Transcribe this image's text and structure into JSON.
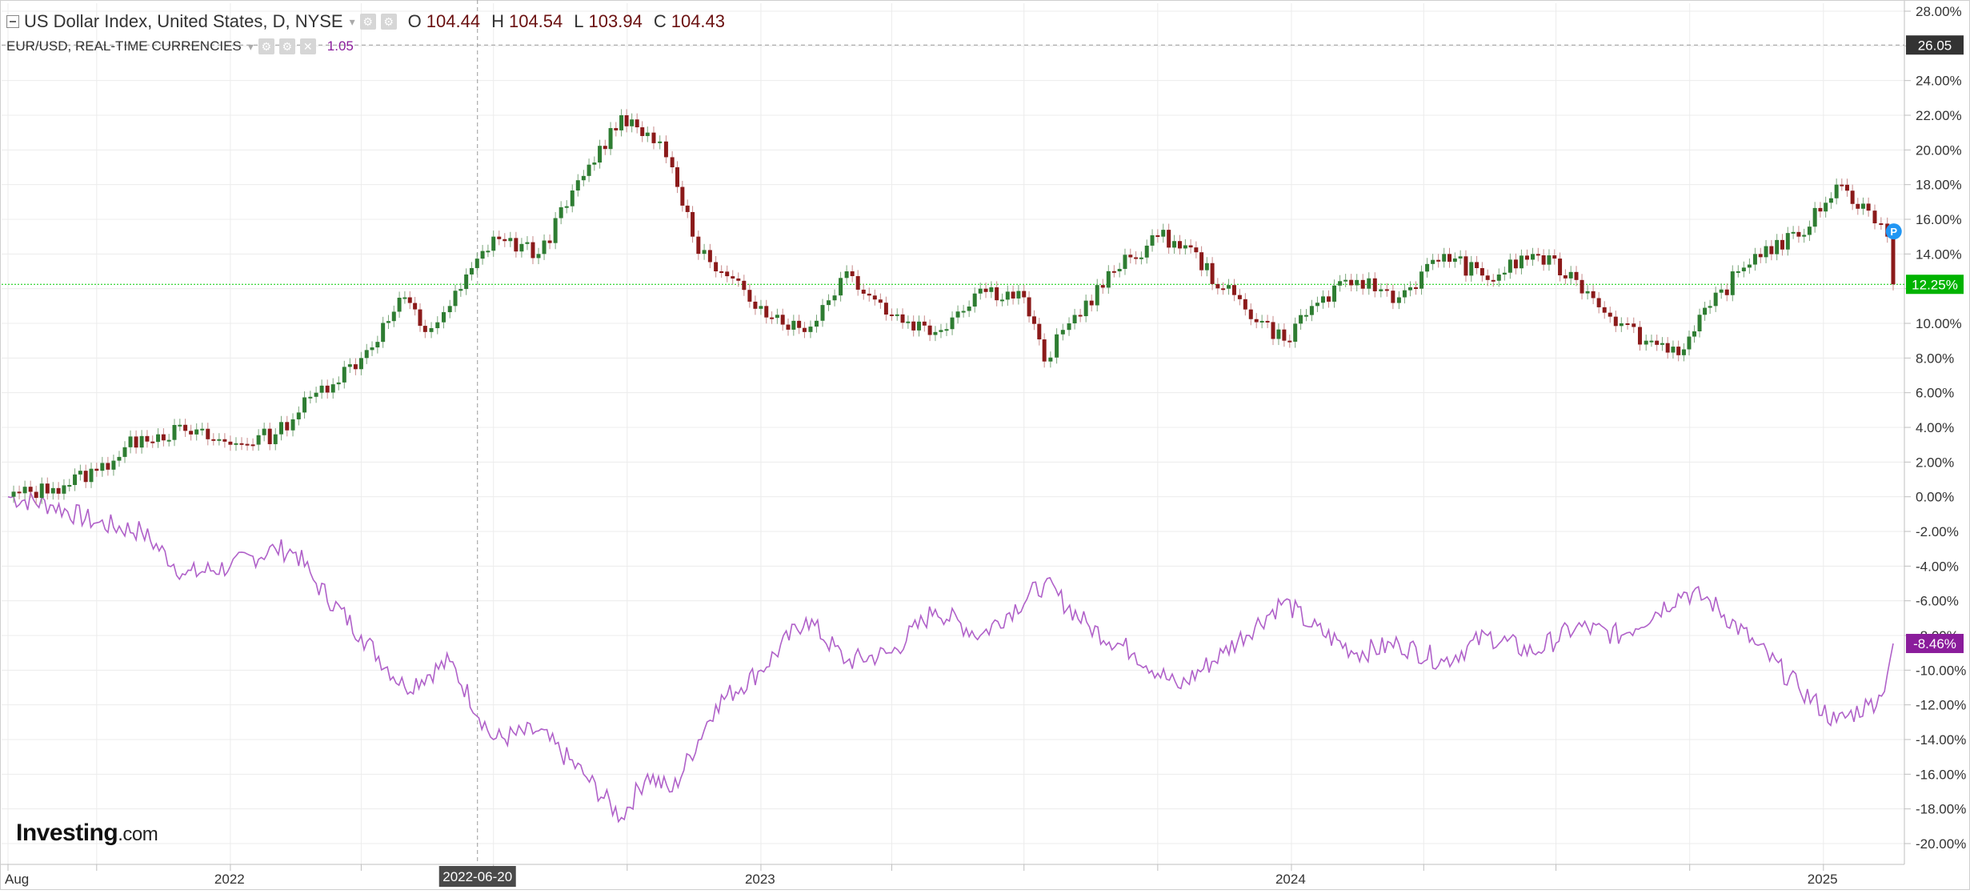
{
  "header": {
    "main_title": "US Dollar Index, United States, D, NYSE",
    "ohlc": [
      {
        "label": "O",
        "value": "104.44"
      },
      {
        "label": "H",
        "value": "104.54"
      },
      {
        "label": "L",
        "value": "103.94"
      },
      {
        "label": "C",
        "value": "104.43"
      }
    ],
    "secondary_title": "EUR/USD, REAL-TIME CURRENCIES",
    "secondary_value": "1.05"
  },
  "logo": {
    "main": "Investing",
    "suffix": ".com"
  },
  "colors": {
    "up": "#2e7d32",
    "down": "#8b1a1a",
    "eurusd_line": "#b061c9",
    "current_line": "#00cc00",
    "label_eurusd": "#8a1c9b",
    "label_current": "#00b300",
    "label_dark": "#333333",
    "marker_p": "#2196f3"
  },
  "chart_data": {
    "type": "line",
    "title": "US Dollar Index, United States, D, NYSE",
    "ylabel": "",
    "xlabel": "",
    "ylim": [
      -21,
      29
    ],
    "y_ticks": [
      "28.00%",
      "26.00%",
      "24.00%",
      "22.00%",
      "20.00%",
      "18.00%",
      "16.00%",
      "14.00%",
      "12.00%",
      "10.00%",
      "8.00%",
      "6.00%",
      "4.00%",
      "2.00%",
      "0.00%",
      "-2.00%",
      "-4.00%",
      "-6.00%",
      "-8.00%",
      "-10.00%",
      "-12.00%",
      "-14.00%",
      "-16.00%",
      "-18.00%",
      "-20.00%"
    ],
    "x_axis": {
      "start": "2021-08-01",
      "end": "2025-02-18",
      "labels": [
        {
          "date": "2021-08-01",
          "text": "Aug"
        },
        {
          "date": "2022-01-01",
          "text": "2022"
        },
        {
          "date": "2023-01-01",
          "text": "2023"
        },
        {
          "date": "2024-01-01",
          "text": "2024"
        },
        {
          "date": "2025-01-01",
          "text": "2025"
        }
      ],
      "minor_ticks": [
        "2021-10-01",
        "2022-04-01",
        "2022-07-01",
        "2022-10-01",
        "2023-04-01",
        "2023-07-01",
        "2023-10-01",
        "2024-04-01",
        "2024-07-01",
        "2024-10-01"
      ],
      "crosshair_date": "2022-06-20"
    },
    "price_labels": [
      {
        "text": "26.05",
        "value": 26.05,
        "style": "dark"
      },
      {
        "text": "12.25%",
        "value": 12.25,
        "style": "current"
      },
      {
        "text": "-8.46%",
        "value": -8.46,
        "style": "eurusd"
      }
    ],
    "grid": true,
    "series": [
      {
        "kind": "candlestick",
        "points": [
          {
            "date": "2021-08-01",
            "value": 0
          },
          {
            "date": "2021-09-01",
            "value": 0.5
          },
          {
            "date": "2021-10-01",
            "value": 1.5
          },
          {
            "date": "2021-11-01",
            "value": 3.5
          },
          {
            "date": "2021-12-01",
            "value": 3.8
          },
          {
            "date": "2022-01-01",
            "value": 3
          },
          {
            "date": "2022-02-01",
            "value": 3.6
          },
          {
            "date": "2022-03-01",
            "value": 6
          },
          {
            "date": "2022-04-01",
            "value": 8
          },
          {
            "date": "2022-05-01",
            "value": 11.5
          },
          {
            "date": "2022-05-15",
            "value": 9.5
          },
          {
            "date": "2022-06-01",
            "value": 11
          },
          {
            "date": "2022-07-01",
            "value": 15
          },
          {
            "date": "2022-08-01",
            "value": 14
          },
          {
            "date": "2022-09-01",
            "value": 18.5
          },
          {
            "date": "2022-09-27",
            "value": 22
          },
          {
            "date": "2022-10-15",
            "value": 21
          },
          {
            "date": "2022-11-01",
            "value": 19
          },
          {
            "date": "2022-11-15",
            "value": 15
          },
          {
            "date": "2022-12-01",
            "value": 13
          },
          {
            "date": "2023-01-01",
            "value": 11
          },
          {
            "date": "2023-01-31",
            "value": 9.5
          },
          {
            "date": "2023-03-01",
            "value": 13
          },
          {
            "date": "2023-04-01",
            "value": 10.5
          },
          {
            "date": "2023-05-01",
            "value": 9.5
          },
          {
            "date": "2023-06-01",
            "value": 12
          },
          {
            "date": "2023-07-01",
            "value": 11.5
          },
          {
            "date": "2023-07-15",
            "value": 7.8
          },
          {
            "date": "2023-08-01",
            "value": 10
          },
          {
            "date": "2023-09-01",
            "value": 13
          },
          {
            "date": "2023-10-01",
            "value": 15
          },
          {
            "date": "2023-10-20",
            "value": 14.5
          },
          {
            "date": "2023-11-15",
            "value": 12
          },
          {
            "date": "2023-12-27",
            "value": 9
          },
          {
            "date": "2024-01-15",
            "value": 11
          },
          {
            "date": "2024-02-15",
            "value": 12.5
          },
          {
            "date": "2024-03-15",
            "value": 11.5
          },
          {
            "date": "2024-04-15",
            "value": 14
          },
          {
            "date": "2024-05-15",
            "value": 12.5
          },
          {
            "date": "2024-06-15",
            "value": 14
          },
          {
            "date": "2024-07-15",
            "value": 12.5
          },
          {
            "date": "2024-08-15",
            "value": 10
          },
          {
            "date": "2024-09-01",
            "value": 9
          },
          {
            "date": "2024-09-27",
            "value": 8.5
          },
          {
            "date": "2024-10-15",
            "value": 11
          },
          {
            "date": "2024-11-15",
            "value": 14
          },
          {
            "date": "2024-12-15",
            "value": 15
          },
          {
            "date": "2025-01-10",
            "value": 18
          },
          {
            "date": "2025-02-01",
            "value": 16.5
          },
          {
            "date": "2025-02-14",
            "value": 15
          },
          {
            "date": "2025-02-18",
            "value": 12.25
          }
        ]
      },
      {
        "kind": "line",
        "points": [
          {
            "date": "2021-08-01",
            "value": 0
          },
          {
            "date": "2021-09-01",
            "value": -0.5
          },
          {
            "date": "2021-10-01",
            "value": -1.5
          },
          {
            "date": "2021-11-01",
            "value": -2
          },
          {
            "date": "2021-12-01",
            "value": -4.5
          },
          {
            "date": "2022-01-01",
            "value": -4
          },
          {
            "date": "2022-02-01",
            "value": -3
          },
          {
            "date": "2022-02-15",
            "value": -3.2
          },
          {
            "date": "2022-03-01",
            "value": -5
          },
          {
            "date": "2022-04-01",
            "value": -8
          },
          {
            "date": "2022-05-01",
            "value": -11
          },
          {
            "date": "2022-06-01",
            "value": -9.5
          },
          {
            "date": "2022-07-01",
            "value": -14
          },
          {
            "date": "2022-08-01",
            "value": -13.5
          },
          {
            "date": "2022-09-01",
            "value": -16
          },
          {
            "date": "2022-09-27",
            "value": -18.5
          },
          {
            "date": "2022-10-15",
            "value": -16
          },
          {
            "date": "2022-11-01",
            "value": -17
          },
          {
            "date": "2022-12-01",
            "value": -12
          },
          {
            "date": "2023-01-01",
            "value": -10
          },
          {
            "date": "2023-02-01",
            "value": -7
          },
          {
            "date": "2023-03-01",
            "value": -9.5
          },
          {
            "date": "2023-04-01",
            "value": -9
          },
          {
            "date": "2023-05-01",
            "value": -6.5
          },
          {
            "date": "2023-06-01",
            "value": -8
          },
          {
            "date": "2023-07-15",
            "value": -5
          },
          {
            "date": "2023-08-15",
            "value": -7.5
          },
          {
            "date": "2023-09-15",
            "value": -9
          },
          {
            "date": "2023-10-15",
            "value": -11
          },
          {
            "date": "2023-11-15",
            "value": -9
          },
          {
            "date": "2023-12-27",
            "value": -6
          },
          {
            "date": "2024-01-15",
            "value": -7.5
          },
          {
            "date": "2024-02-15",
            "value": -9
          },
          {
            "date": "2024-03-15",
            "value": -8.5
          },
          {
            "date": "2024-04-15",
            "value": -9.5
          },
          {
            "date": "2024-05-15",
            "value": -8
          },
          {
            "date": "2024-06-15",
            "value": -9
          },
          {
            "date": "2024-07-15",
            "value": -7.5
          },
          {
            "date": "2024-08-15",
            "value": -8
          },
          {
            "date": "2024-09-27",
            "value": -5.5
          },
          {
            "date": "2024-10-15",
            "value": -6
          },
          {
            "date": "2024-11-15",
            "value": -8.5
          },
          {
            "date": "2024-12-15",
            "value": -11
          },
          {
            "date": "2025-01-10",
            "value": -13
          },
          {
            "date": "2025-02-01",
            "value": -12
          },
          {
            "date": "2025-02-10",
            "value": -11.5
          },
          {
            "date": "2025-02-18",
            "value": -8.46
          }
        ]
      }
    ]
  }
}
